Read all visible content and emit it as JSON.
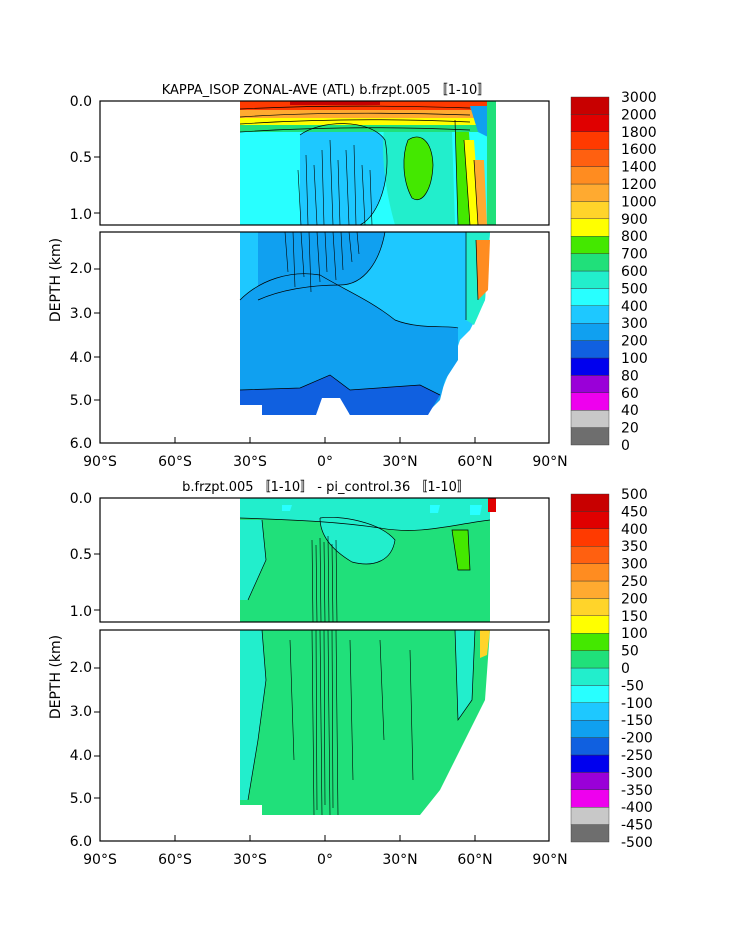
{
  "chart_data": [
    {
      "type": "heatmap",
      "title": "KAPPA_ISOP ZONAL-AVE (ATL) b.frzpt.005 〚1-10〛",
      "ylabel": "DEPTH (km)",
      "xlim": [
        -90,
        90
      ],
      "ylim": [
        6.0,
        0.0
      ],
      "x_ticks": [
        "90°S",
        "60°S",
        "30°S",
        "0°",
        "30°N",
        "60°N",
        "90°N"
      ],
      "y_ticks_upper": [
        "0.0",
        "0.5",
        "1.0"
      ],
      "y_ticks_lower": [
        "2.0",
        "3.0",
        "4.0",
        "5.0",
        "6.0"
      ],
      "colorbar": {
        "levels": [
          "0",
          "20",
          "40",
          "60",
          "80",
          "100",
          "200",
          "300",
          "400",
          "500",
          "600",
          "700",
          "800",
          "900",
          "1000",
          "1200",
          "1400",
          "1600",
          "1800",
          "2000",
          "3000"
        ],
        "colors": [
          "#6e6e6e",
          "#c8c8c8",
          "#ee00ee",
          "#9a00d8",
          "#0000ee",
          "#1060e0",
          "#10a0f0",
          "#1ec8ff",
          "#28ffff",
          "#22eecc",
          "#20e07a",
          "#44e800",
          "#ffff00",
          "#ffd42a",
          "#ffaa30",
          "#ff8c20",
          "#ff6010",
          "#ff3a00",
          "#e00000",
          "#c80000"
        ]
      },
      "data_region": {
        "lat_min": -35,
        "lat_max": 68,
        "bottom_depth_km": 5.3
      }
    },
    {
      "type": "heatmap",
      "title": "b.frzpt.005 〚1-10〛 - pi_control.36 〚1-10〛",
      "ylabel": "DEPTH (km)",
      "xlim": [
        -90,
        90
      ],
      "ylim": [
        6.0,
        0.0
      ],
      "x_ticks": [
        "90°S",
        "60°S",
        "30°S",
        "0°",
        "30°N",
        "60°N",
        "90°N"
      ],
      "y_ticks_upper": [
        "0.0",
        "0.5",
        "1.0"
      ],
      "y_ticks_lower": [
        "2.0",
        "3.0",
        "4.0",
        "5.0",
        "6.0"
      ],
      "colorbar": {
        "levels": [
          "-500",
          "-450",
          "-400",
          "-350",
          "-300",
          "-250",
          "-200",
          "-150",
          "-100",
          "-50",
          "0",
          "50",
          "100",
          "150",
          "200",
          "250",
          "300",
          "350",
          "400",
          "450",
          "500"
        ],
        "colors": [
          "#6e6e6e",
          "#c8c8c8",
          "#ee00ee",
          "#9a00d8",
          "#0000ee",
          "#1060e0",
          "#10a0f0",
          "#1ec8ff",
          "#28ffff",
          "#22eecc",
          "#20e07a",
          "#44e800",
          "#ffff00",
          "#ffd42a",
          "#ffaa30",
          "#ff8c20",
          "#ff6010",
          "#ff3a00",
          "#e00000",
          "#c80000"
        ]
      },
      "data_region": {
        "lat_min": -35,
        "lat_max": 68,
        "bottom_depth_km": 5.3
      }
    }
  ]
}
